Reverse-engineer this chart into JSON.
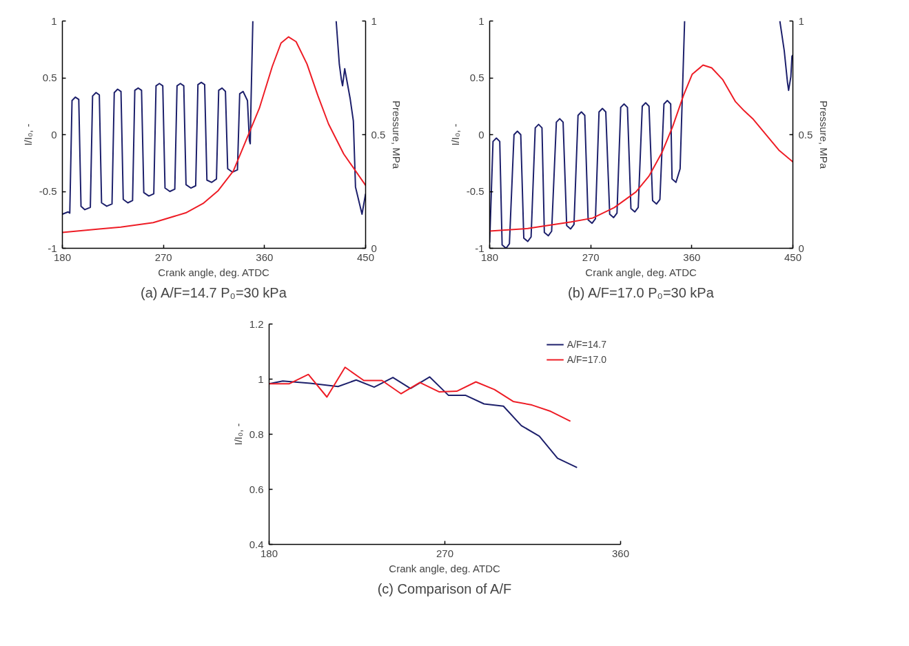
{
  "chart_data": [
    {
      "type": "line",
      "title": "(a) A/F=14.7 P₀=30 kPa",
      "xlabel": "Crank angle, deg. ATDC",
      "ylabel": "I/I₀, -",
      "y2label": "Pressure, MPa",
      "xlim": [
        180,
        450
      ],
      "xticks": [
        180,
        270,
        360,
        450
      ],
      "ylim": [
        -1,
        1
      ],
      "yticks": [
        -1,
        -0.5,
        0,
        0.5,
        1
      ],
      "y2lim": [
        0,
        1
      ],
      "y2ticks": [
        0,
        0.5,
        1
      ],
      "grid": false,
      "legend": false,
      "series": [
        {
          "color": "#1c1f6b",
          "x": [
            180,
            185,
            186.6,
            188.6,
            191.6,
            194.6,
            196.6,
            200,
            204.9,
            206.9,
            209.9,
            212.9,
            214.9,
            219.5,
            224.2,
            226.2,
            229.2,
            232.2,
            234.2,
            238.3,
            242.5,
            244.5,
            247.5,
            250.5,
            252.5,
            257,
            261.4,
            263.4,
            266.4,
            269.4,
            271.4,
            275.7,
            280.1,
            282.1,
            285.1,
            288.1,
            290.1,
            294.4,
            298.7,
            300.7,
            303.7,
            306.7,
            308.7,
            313,
            317.2,
            319.2,
            322.2,
            325.2,
            327.2,
            331.5,
            335.9,
            337.9,
            340.9,
            344.8,
            346.5,
            347.3,
            348,
            349.6,
            400,
            423.8,
            426.6,
            428.5,
            429.5,
            431.4,
            436.2,
            439.1,
            441.0,
            446.8,
            450
          ],
          "values": [
            -0.7,
            -0.68,
            -0.69,
            0.3,
            0.33,
            0.31,
            -0.63,
            -0.66,
            -0.64,
            0.34,
            0.37,
            0.35,
            -0.6,
            -0.63,
            -0.61,
            0.37,
            0.4,
            0.38,
            -0.57,
            -0.6,
            -0.58,
            0.39,
            0.41,
            0.39,
            -0.51,
            -0.54,
            -0.52,
            0.43,
            0.45,
            0.43,
            -0.47,
            -0.5,
            -0.48,
            0.43,
            0.45,
            0.43,
            -0.44,
            -0.47,
            -0.45,
            0.44,
            0.46,
            0.44,
            -0.4,
            -0.42,
            -0.39,
            0.39,
            0.41,
            0.38,
            -0.3,
            -0.33,
            -0.31,
            0.36,
            0.38,
            0.3,
            -0.05,
            -0.08,
            0.3,
            1.0,
            null,
            1.0,
            0.62,
            0.48,
            0.43,
            0.58,
            0.32,
            0.12,
            -0.46,
            -0.7,
            -0.52
          ]
        },
        {
          "color": "#ee1c25",
          "axis": "y2",
          "x": [
            180,
            212.8,
            232.0,
            260.9,
            289.9,
            305.3,
            318.8,
            332.2,
            343.8,
            355.4,
            366.9,
            374.7,
            381.4,
            388.1,
            397.8,
            407.4,
            417.0,
            430.5,
            450
          ],
          "values": [
            0.07,
            0.085,
            0.093,
            0.113,
            0.156,
            0.197,
            0.254,
            0.34,
            0.478,
            0.616,
            0.8,
            0.903,
            0.93,
            0.909,
            0.811,
            0.673,
            0.547,
            0.415,
            0.277
          ]
        }
      ]
    },
    {
      "type": "line",
      "title": "(b) A/F=17.0 P₀=30 kPa",
      "xlabel": "Crank angle, deg. ATDC",
      "ylabel": "I/I₀, -",
      "y2label": "Pressure, MPa",
      "xlim": [
        180,
        450
      ],
      "xticks": [
        180,
        270,
        360,
        450
      ],
      "ylim": [
        -1,
        1
      ],
      "yticks": [
        -1,
        -0.5,
        0,
        0.5,
        1
      ],
      "y2lim": [
        0,
        1
      ],
      "y2ticks": [
        0,
        0.5,
        1
      ],
      "grid": false,
      "legend": false,
      "series": [
        {
          "color": "#1c1f6b",
          "x": [
            180,
            183,
            186.0,
            189,
            191.1,
            194.6,
            197.6,
            201.7,
            204.7,
            207.7,
            210.4,
            213.9,
            216.9,
            220.6,
            223.6,
            226.6,
            228.7,
            232.2,
            235.2,
            239.4,
            242.4,
            245.4,
            248.6,
            252.1,
            255.1,
            258.7,
            261.7,
            264.7,
            267.7,
            271.2,
            274.2,
            277.4,
            280.4,
            283.4,
            286.9,
            290.4,
            293.4,
            296.7,
            299.7,
            302.7,
            305.8,
            309.3,
            312.3,
            315.9,
            318.9,
            321.9,
            325.1,
            328.6,
            331.6,
            335.2,
            338.2,
            341.2,
            342.4,
            345.9,
            349.6,
            353.6,
            400,
            438.4,
            442.3,
            445.2,
            446.2,
            448.2,
            449.2,
            450
          ],
          "values": [
            -0.95,
            -0.06,
            -0.03,
            -0.06,
            -0.97,
            -1.0,
            -0.96,
            0.0,
            0.03,
            0.0,
            -0.91,
            -0.94,
            -0.9,
            0.06,
            0.09,
            0.06,
            -0.86,
            -0.89,
            -0.85,
            0.11,
            0.14,
            0.11,
            -0.8,
            -0.83,
            -0.79,
            0.17,
            0.2,
            0.17,
            -0.75,
            -0.78,
            -0.74,
            0.2,
            0.23,
            0.2,
            -0.7,
            -0.73,
            -0.69,
            0.24,
            0.27,
            0.24,
            -0.65,
            -0.68,
            -0.64,
            0.25,
            0.28,
            0.25,
            -0.58,
            -0.61,
            -0.57,
            0.27,
            0.3,
            0.27,
            -0.39,
            -0.42,
            -0.3,
            1.0,
            null,
            1.0,
            0.74,
            0.46,
            0.39,
            0.51,
            0.69,
            0.7
          ]
        },
        {
          "color": "#ee1c25",
          "axis": "y2",
          "x": [
            180,
            213.9,
            252.5,
            271.7,
            291.0,
            310.3,
            321.8,
            333.4,
            343.0,
            352.7,
            360.4,
            370.0,
            377.7,
            387.4,
            398.9,
            406.6,
            414.3,
            425.9,
            437.5,
            450
          ],
          "values": [
            0.076,
            0.087,
            0.116,
            0.133,
            0.179,
            0.248,
            0.317,
            0.421,
            0.536,
            0.674,
            0.766,
            0.806,
            0.794,
            0.743,
            0.645,
            0.605,
            0.57,
            0.501,
            0.432,
            0.38
          ]
        }
      ]
    },
    {
      "type": "line",
      "title": "(c) Comparison of A/F",
      "xlabel": "Crank angle, deg. ATDC",
      "ylabel": "I/I₀, -",
      "xlim": [
        180,
        360
      ],
      "xticks": [
        180,
        270,
        360
      ],
      "ylim": [
        0.4,
        1.2
      ],
      "yticks": [
        0.4,
        0.6,
        0.8,
        1,
        1.2
      ],
      "grid": false,
      "legend": "top right",
      "series": [
        {
          "name": "A/F=14.7",
          "color": "#1c1f6b",
          "x": [
            180,
            187.0,
            201.0,
            215.3,
            224.6,
            233.8,
            243.4,
            252.4,
            262.2,
            271.9,
            280.7,
            290.1,
            300.0,
            309.2,
            318.4,
            327.7,
            337.7
          ],
          "values": [
            0.983,
            0.993,
            0.985,
            0.973,
            0.997,
            0.971,
            1.006,
            0.966,
            1.008,
            0.941,
            0.941,
            0.91,
            0.902,
            0.831,
            0.793,
            0.713,
            0.679
          ]
        },
        {
          "name": "A/F=17.0",
          "color": "#ee1c25",
          "x": [
            180,
            190.2,
            200.1,
            209.6,
            218.9,
            228.5,
            237.8,
            247.6,
            257.2,
            267.0,
            276.1,
            285.9,
            295.4,
            305.0,
            314.6,
            324.2,
            334.3
          ],
          "values": [
            0.983,
            0.983,
            1.017,
            0.935,
            1.043,
            0.995,
            0.995,
            0.947,
            0.988,
            0.954,
            0.956,
            0.99,
            0.962,
            0.919,
            0.906,
            0.883,
            0.847
          ]
        }
      ]
    }
  ]
}
